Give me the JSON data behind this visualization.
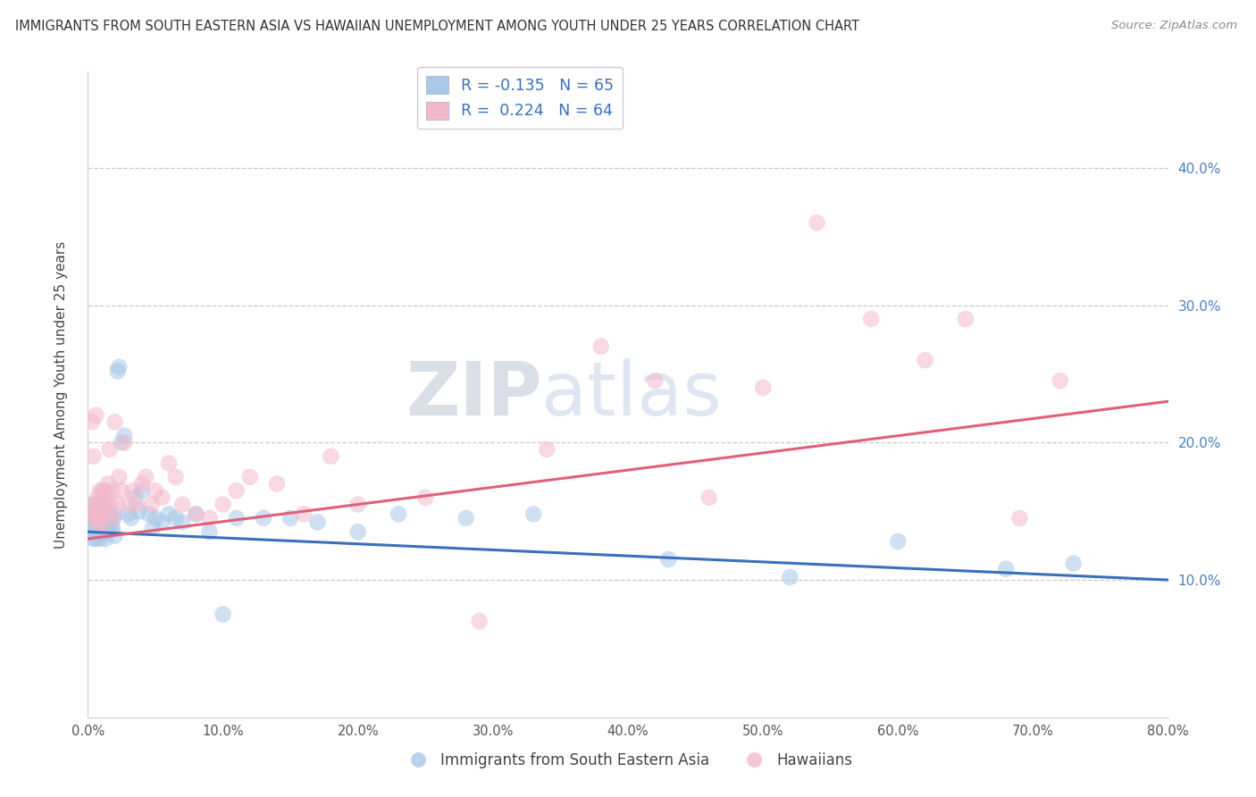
{
  "title": "IMMIGRANTS FROM SOUTH EASTERN ASIA VS HAWAIIAN UNEMPLOYMENT AMONG YOUTH UNDER 25 YEARS CORRELATION CHART",
  "source": "Source: ZipAtlas.com",
  "xlabel_blue": "Immigrants from South Eastern Asia",
  "xlabel_pink": "Hawaiians",
  "ylabel": "Unemployment Among Youth under 25 years",
  "r_blue": -0.135,
  "n_blue": 65,
  "r_pink": 0.224,
  "n_pink": 64,
  "blue_color": "#a8c8e8",
  "pink_color": "#f4b8cc",
  "blue_line_color": "#3a6fbc",
  "pink_line_color": "#e0607a",
  "watermark_zip": "ZIP",
  "watermark_atlas": "atlas",
  "xlim": [
    0.0,
    0.8
  ],
  "ylim": [
    0.0,
    0.47
  ],
  "yticks": [
    0.1,
    0.2,
    0.3,
    0.4
  ],
  "xticks": [
    0.0,
    0.1,
    0.2,
    0.3,
    0.4,
    0.5,
    0.6,
    0.7,
    0.8
  ],
  "blue_trend_x0": 0.0,
  "blue_trend_y0": 0.135,
  "blue_trend_x1": 0.8,
  "blue_trend_y1": 0.1,
  "pink_trend_x0": 0.0,
  "pink_trend_y0": 0.13,
  "pink_trend_x1": 0.8,
  "pink_trend_y1": 0.23,
  "blue_scatter_x": [
    0.002,
    0.003,
    0.004,
    0.004,
    0.005,
    0.005,
    0.006,
    0.006,
    0.007,
    0.007,
    0.008,
    0.008,
    0.009,
    0.009,
    0.01,
    0.01,
    0.01,
    0.011,
    0.011,
    0.012,
    0.012,
    0.013,
    0.013,
    0.014,
    0.014,
    0.015,
    0.015,
    0.016,
    0.017,
    0.018,
    0.019,
    0.02,
    0.02,
    0.022,
    0.023,
    0.025,
    0.027,
    0.03,
    0.032,
    0.035,
    0.038,
    0.04,
    0.045,
    0.048,
    0.05,
    0.055,
    0.06,
    0.065,
    0.07,
    0.08,
    0.09,
    0.1,
    0.11,
    0.13,
    0.15,
    0.17,
    0.2,
    0.23,
    0.28,
    0.33,
    0.43,
    0.52,
    0.6,
    0.68,
    0.73
  ],
  "blue_scatter_y": [
    0.135,
    0.145,
    0.13,
    0.155,
    0.14,
    0.15,
    0.13,
    0.145,
    0.135,
    0.15,
    0.14,
    0.145,
    0.13,
    0.148,
    0.135,
    0.145,
    0.15,
    0.14,
    0.148,
    0.135,
    0.145,
    0.13,
    0.148,
    0.14,
    0.15,
    0.135,
    0.145,
    0.148,
    0.14,
    0.138,
    0.145,
    0.132,
    0.148,
    0.252,
    0.255,
    0.2,
    0.205,
    0.148,
    0.145,
    0.16,
    0.15,
    0.165,
    0.148,
    0.138,
    0.145,
    0.142,
    0.148,
    0.145,
    0.142,
    0.148,
    0.135,
    0.075,
    0.145,
    0.145,
    0.145,
    0.142,
    0.135,
    0.148,
    0.145,
    0.148,
    0.115,
    0.102,
    0.128,
    0.108,
    0.112
  ],
  "pink_scatter_x": [
    0.002,
    0.003,
    0.004,
    0.005,
    0.005,
    0.006,
    0.006,
    0.007,
    0.007,
    0.008,
    0.008,
    0.009,
    0.009,
    0.01,
    0.01,
    0.011,
    0.012,
    0.012,
    0.013,
    0.014,
    0.015,
    0.015,
    0.016,
    0.017,
    0.018,
    0.019,
    0.02,
    0.022,
    0.023,
    0.025,
    0.027,
    0.03,
    0.033,
    0.036,
    0.04,
    0.043,
    0.047,
    0.05,
    0.055,
    0.06,
    0.065,
    0.07,
    0.08,
    0.09,
    0.1,
    0.11,
    0.12,
    0.14,
    0.16,
    0.18,
    0.2,
    0.25,
    0.29,
    0.34,
    0.38,
    0.42,
    0.46,
    0.5,
    0.54,
    0.58,
    0.62,
    0.65,
    0.69,
    0.72
  ],
  "pink_scatter_y": [
    0.15,
    0.215,
    0.19,
    0.155,
    0.145,
    0.22,
    0.148,
    0.16,
    0.15,
    0.155,
    0.142,
    0.165,
    0.145,
    0.138,
    0.158,
    0.165,
    0.148,
    0.165,
    0.155,
    0.162,
    0.148,
    0.17,
    0.195,
    0.155,
    0.165,
    0.145,
    0.215,
    0.155,
    0.175,
    0.165,
    0.2,
    0.155,
    0.165,
    0.155,
    0.17,
    0.175,
    0.155,
    0.165,
    0.16,
    0.185,
    0.175,
    0.155,
    0.148,
    0.145,
    0.155,
    0.165,
    0.175,
    0.17,
    0.148,
    0.19,
    0.155,
    0.16,
    0.07,
    0.195,
    0.27,
    0.245,
    0.16,
    0.24,
    0.36,
    0.29,
    0.26,
    0.29,
    0.145,
    0.245
  ]
}
